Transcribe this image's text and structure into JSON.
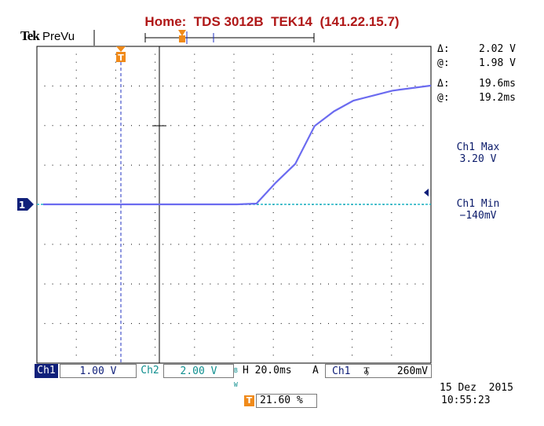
{
  "header": {
    "home_label": "Home:",
    "model": "TDS 3012B",
    "name": "TEK14",
    "ip": "(141.22.15.7)",
    "brand": "Tek",
    "mode": "PreVu"
  },
  "markers": {
    "trigger_glyph": "T",
    "channel1_glyph": "1"
  },
  "readouts": {
    "delta_symbol": "Δ:",
    "at_symbol": "@:",
    "volt_delta": "2.02 V",
    "volt_at": "1.98 V",
    "time_delta": "19.6ms",
    "time_at": "19.2ms"
  },
  "measurements": {
    "max_label": "Ch1 Max",
    "max_value": "3.20 V",
    "min_label": "Ch1 Min",
    "min_value": "−140mV"
  },
  "bottom_bar": {
    "ch1_label": "Ch1",
    "ch1_scale": "1.00 V",
    "ch2_label": "Ch2",
    "ch2_scale": "2.00 V",
    "bw_mark": "B W",
    "timebase": "H 20.0ms",
    "trigger_mode": "A",
    "trigger_source": "Ch1",
    "trigger_slope": "Ⳣ",
    "trigger_level": "260mV"
  },
  "trigger_position": {
    "value": "21.60 %"
  },
  "datetime": {
    "date": "15 Dez  2015",
    "time": "10:55:23"
  },
  "colors": {
    "title": "#b01818",
    "ch1_trace": "#6b6bf0",
    "ch2_trace": "#20b8c8",
    "marker": "#f08a1a",
    "ch1_badge": "#10207a",
    "ch2_text": "#0f8f8f"
  },
  "chart_data": {
    "type": "line",
    "series": [
      {
        "name": "Ch1",
        "x": [
          0,
          5,
          10,
          15,
          20,
          25,
          30,
          35,
          40,
          45,
          50,
          55,
          60,
          65,
          70,
          75,
          80,
          90,
          100
        ],
        "values": [
          0.0,
          0.0,
          0.0,
          0.0,
          0.0,
          0.0,
          0.0,
          0.0,
          0.0,
          0.0,
          0.0,
          0.02,
          0.55,
          1.02,
          1.98,
          2.35,
          2.62,
          2.87,
          3.0
        ]
      }
    ]
  }
}
